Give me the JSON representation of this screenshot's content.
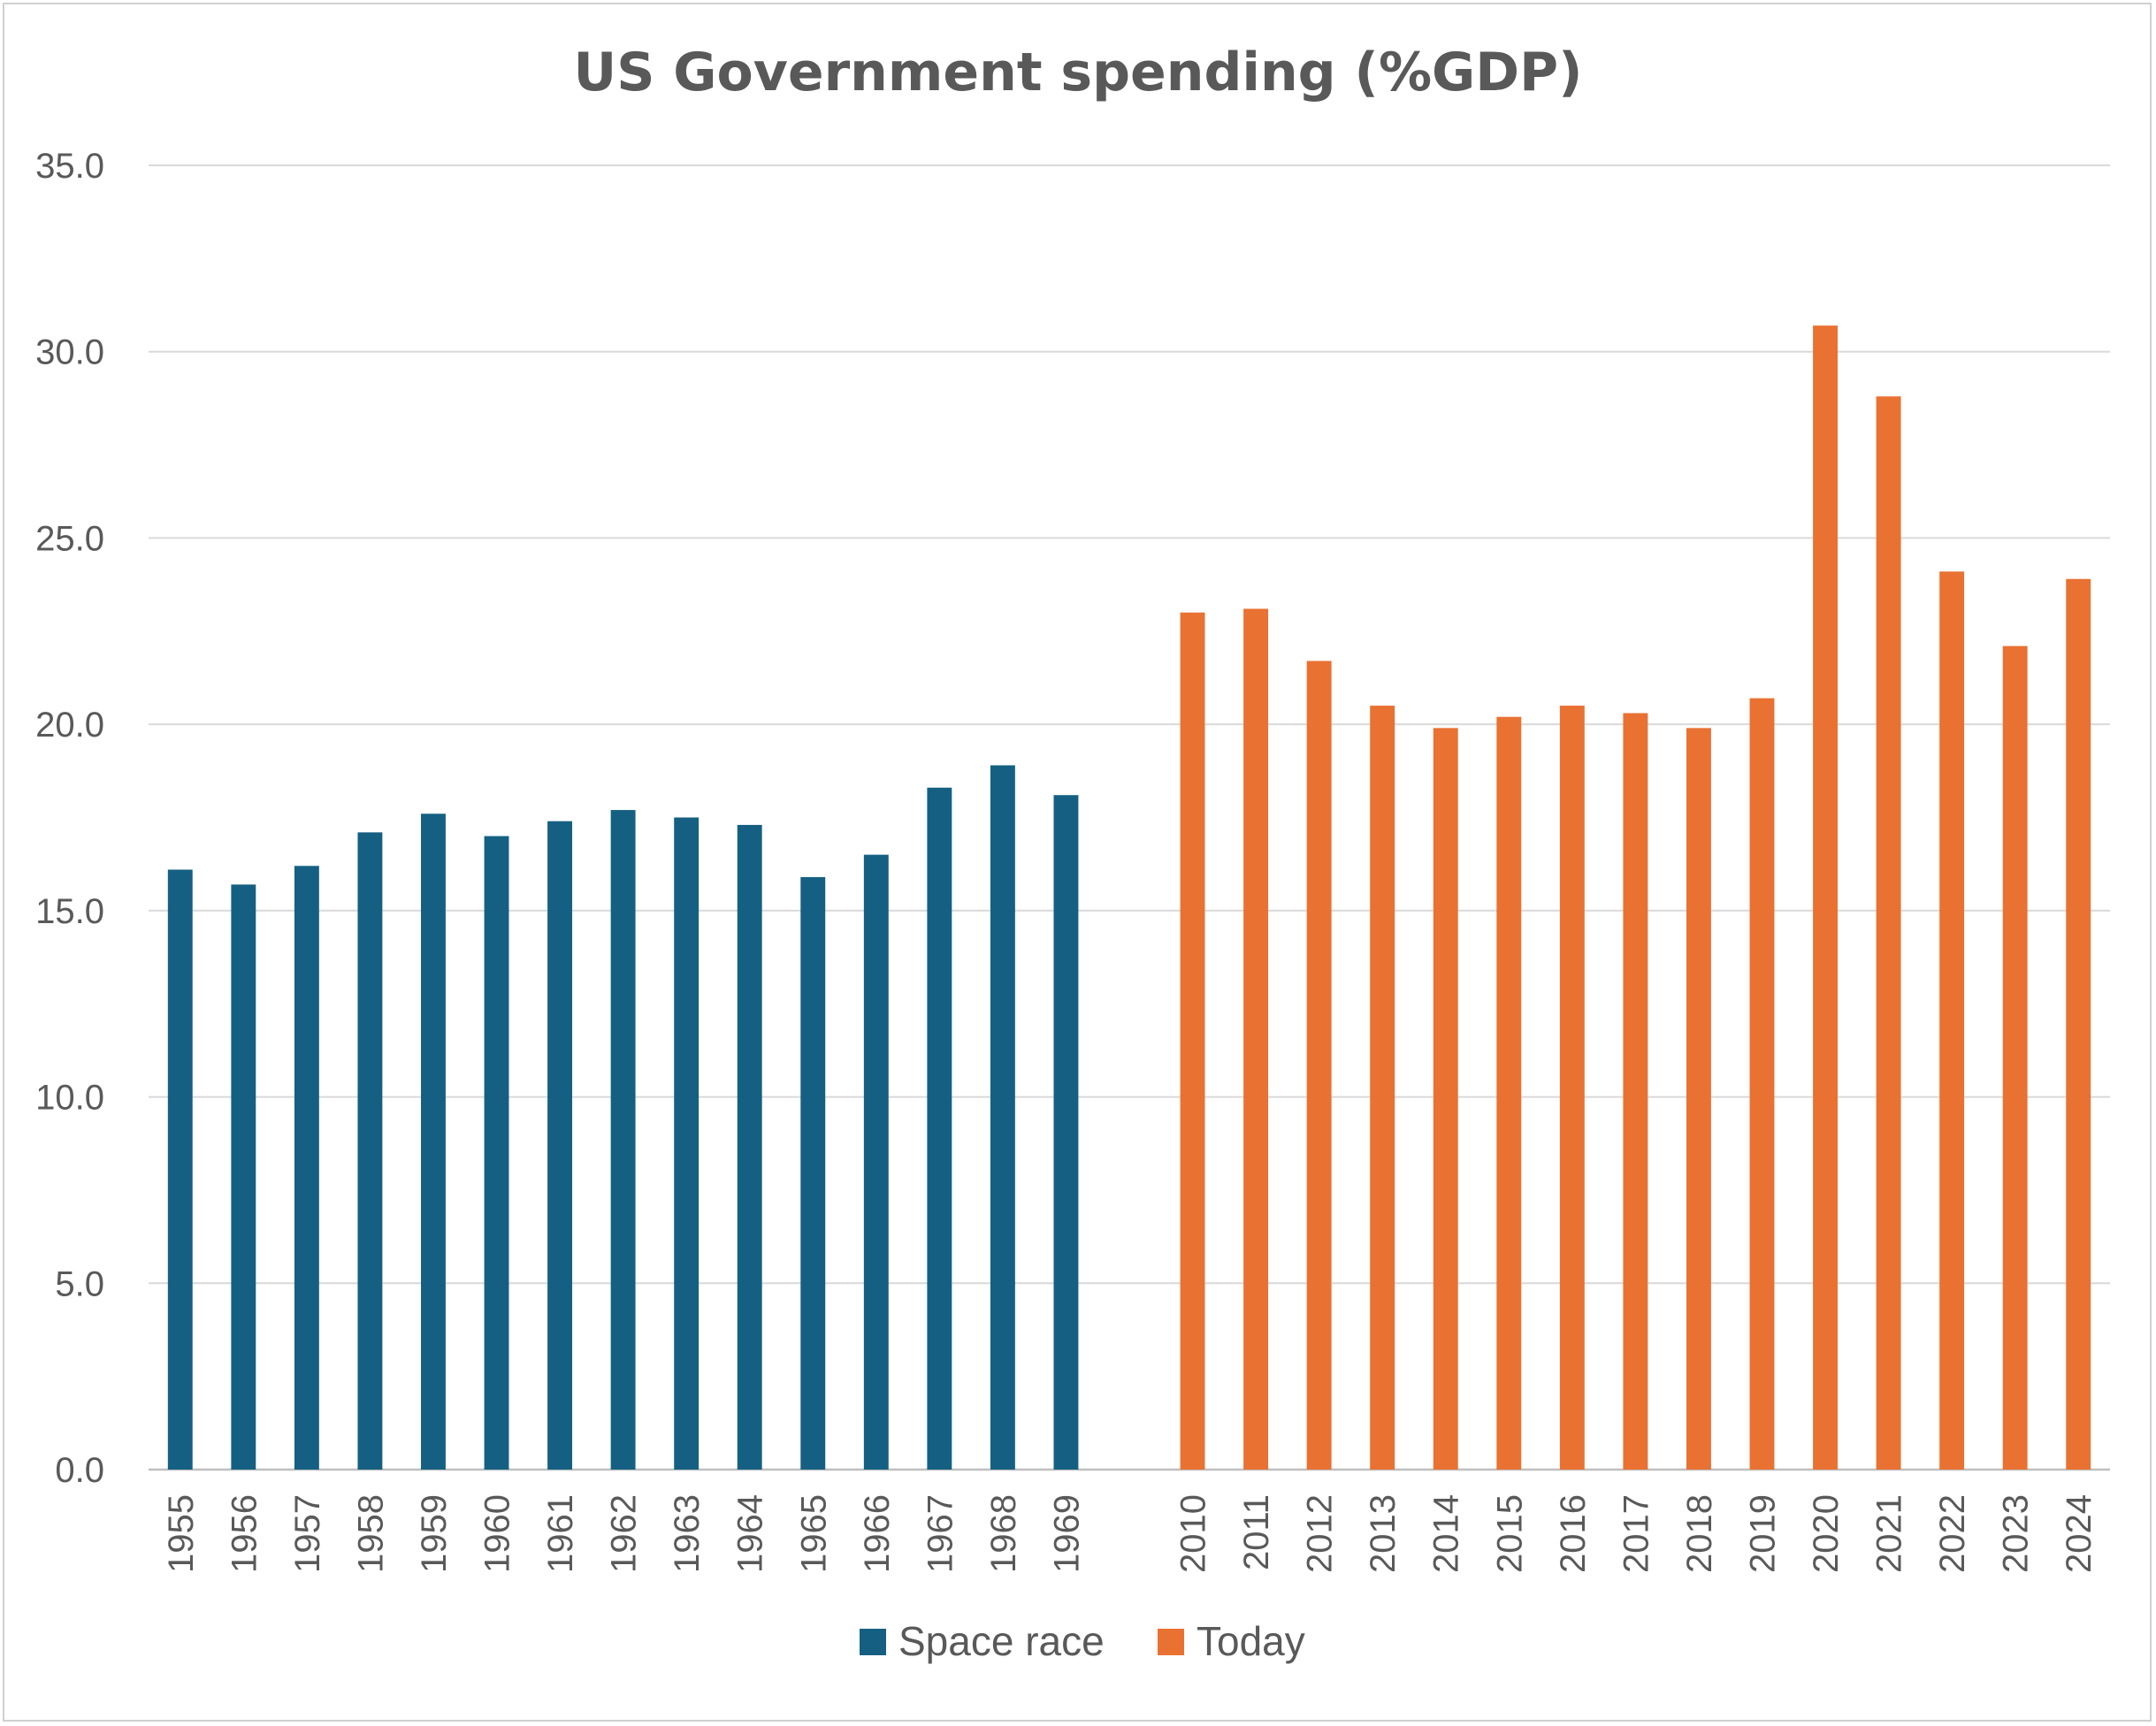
{
  "chart_data": {
    "type": "bar",
    "title": "US Government spending (%GDP)",
    "xlabel": "",
    "ylabel": "",
    "ylim": [
      0,
      35
    ],
    "yticks": [
      "0.0",
      "5.0",
      "10.0",
      "15.0",
      "20.0",
      "25.0",
      "30.0",
      "35.0"
    ],
    "grid": true,
    "legend": "bottom",
    "series": [
      {
        "name": "Space race",
        "color": "#156082",
        "categories": [
          "1955",
          "1956",
          "1957",
          "1958",
          "1959",
          "1960",
          "1961",
          "1962",
          "1963",
          "1964",
          "1965",
          "1966",
          "1967",
          "1968",
          "1969"
        ],
        "values": [
          16.1,
          15.7,
          16.2,
          17.1,
          17.6,
          17.0,
          17.4,
          17.7,
          17.5,
          17.3,
          15.9,
          16.5,
          18.3,
          18.9,
          18.1
        ]
      },
      {
        "name": "Today",
        "color": "#E97132",
        "categories": [
          "2010",
          "2011",
          "2012",
          "2013",
          "2014",
          "2015",
          "2016",
          "2017",
          "2018",
          "2019",
          "2020",
          "2021",
          "2022",
          "2023",
          "2024"
        ],
        "values": [
          23.0,
          23.1,
          21.7,
          20.5,
          19.9,
          20.2,
          20.5,
          20.3,
          19.9,
          20.7,
          30.7,
          28.8,
          24.1,
          22.1,
          23.9
        ]
      }
    ]
  }
}
